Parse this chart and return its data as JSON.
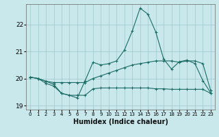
{
  "xlabel": "Humidex (Indice chaleur)",
  "bg_color": "#c8e8ec",
  "grid_color": "#a0c8cc",
  "line_color": "#1a6b64",
  "xlim": [
    -0.5,
    23.5
  ],
  "ylim": [
    18.85,
    22.75
  ],
  "yticks": [
    19,
    20,
    21,
    22
  ],
  "line_rising": [
    20.05,
    20.0,
    19.9,
    19.85,
    19.85,
    19.85,
    19.85,
    19.85,
    20.0,
    20.1,
    20.2,
    20.3,
    20.4,
    20.5,
    20.55,
    20.6,
    20.65,
    20.65,
    20.65,
    20.6,
    20.65,
    20.65,
    20.55,
    19.55
  ],
  "line_flat_low": [
    20.05,
    20.0,
    19.9,
    19.78,
    19.45,
    19.38,
    19.38,
    19.38,
    19.62,
    19.65,
    19.65,
    19.65,
    19.65,
    19.65,
    19.65,
    19.65,
    19.62,
    19.62,
    19.6,
    19.6,
    19.6,
    19.6,
    19.6,
    19.45
  ],
  "line_main": [
    20.05,
    20.0,
    19.82,
    19.72,
    19.45,
    19.38,
    19.28,
    19.92,
    20.6,
    20.5,
    20.55,
    20.65,
    21.05,
    21.75,
    22.6,
    22.38,
    21.72,
    20.72,
    20.35,
    20.62,
    20.68,
    20.55,
    19.92,
    19.47
  ]
}
